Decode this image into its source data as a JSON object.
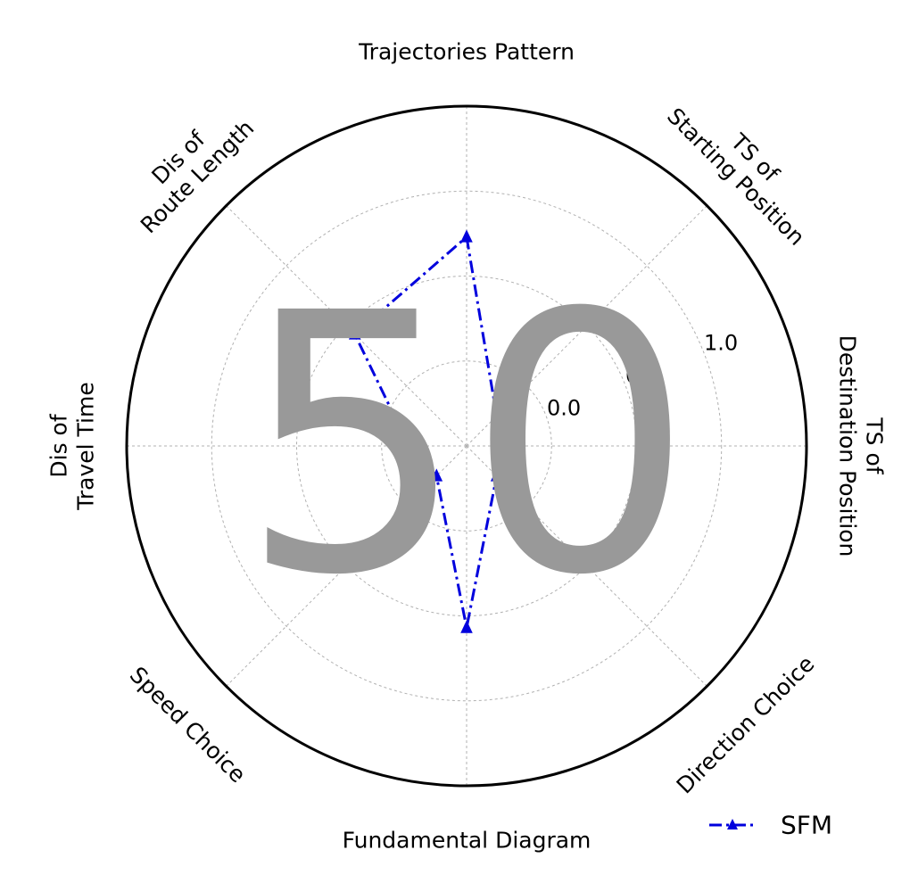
{
  "chart_data": {
    "type": "radar",
    "axes": [
      [
        "Trajectories Pattern"
      ],
      [
        "TS of",
        "Starting Position"
      ],
      [
        "TS of",
        "Destination Position"
      ],
      [
        "Direction Choice"
      ],
      [
        "Fundamental Diagram"
      ],
      [
        "Speed Choice"
      ],
      [
        "Dis of",
        "Travel Time"
      ],
      [
        "Dis of",
        "Route Length"
      ]
    ],
    "radial_ticks": [
      {
        "value": 0.0,
        "label": "0.0"
      },
      {
        "value": 0.5,
        "label": "0.5"
      },
      {
        "value": 1.0,
        "label": "1.0"
      }
    ],
    "rlim": [
      -0.5,
      1.5
    ],
    "grid": true,
    "legend_position": "bottom-right",
    "series": [
      {
        "name": "SFM",
        "values": [
          0.73,
          -0.25,
          -0.25,
          -0.25,
          0.57,
          -0.25,
          -0.16,
          0.43
        ],
        "color": "#0000dd",
        "line_style": "dash-dot",
        "marker": "triangle"
      }
    ]
  },
  "overlay_text": "50",
  "colors": {
    "grid": "#b0b0b0",
    "frame": "#000000",
    "overlay": "#999999"
  }
}
